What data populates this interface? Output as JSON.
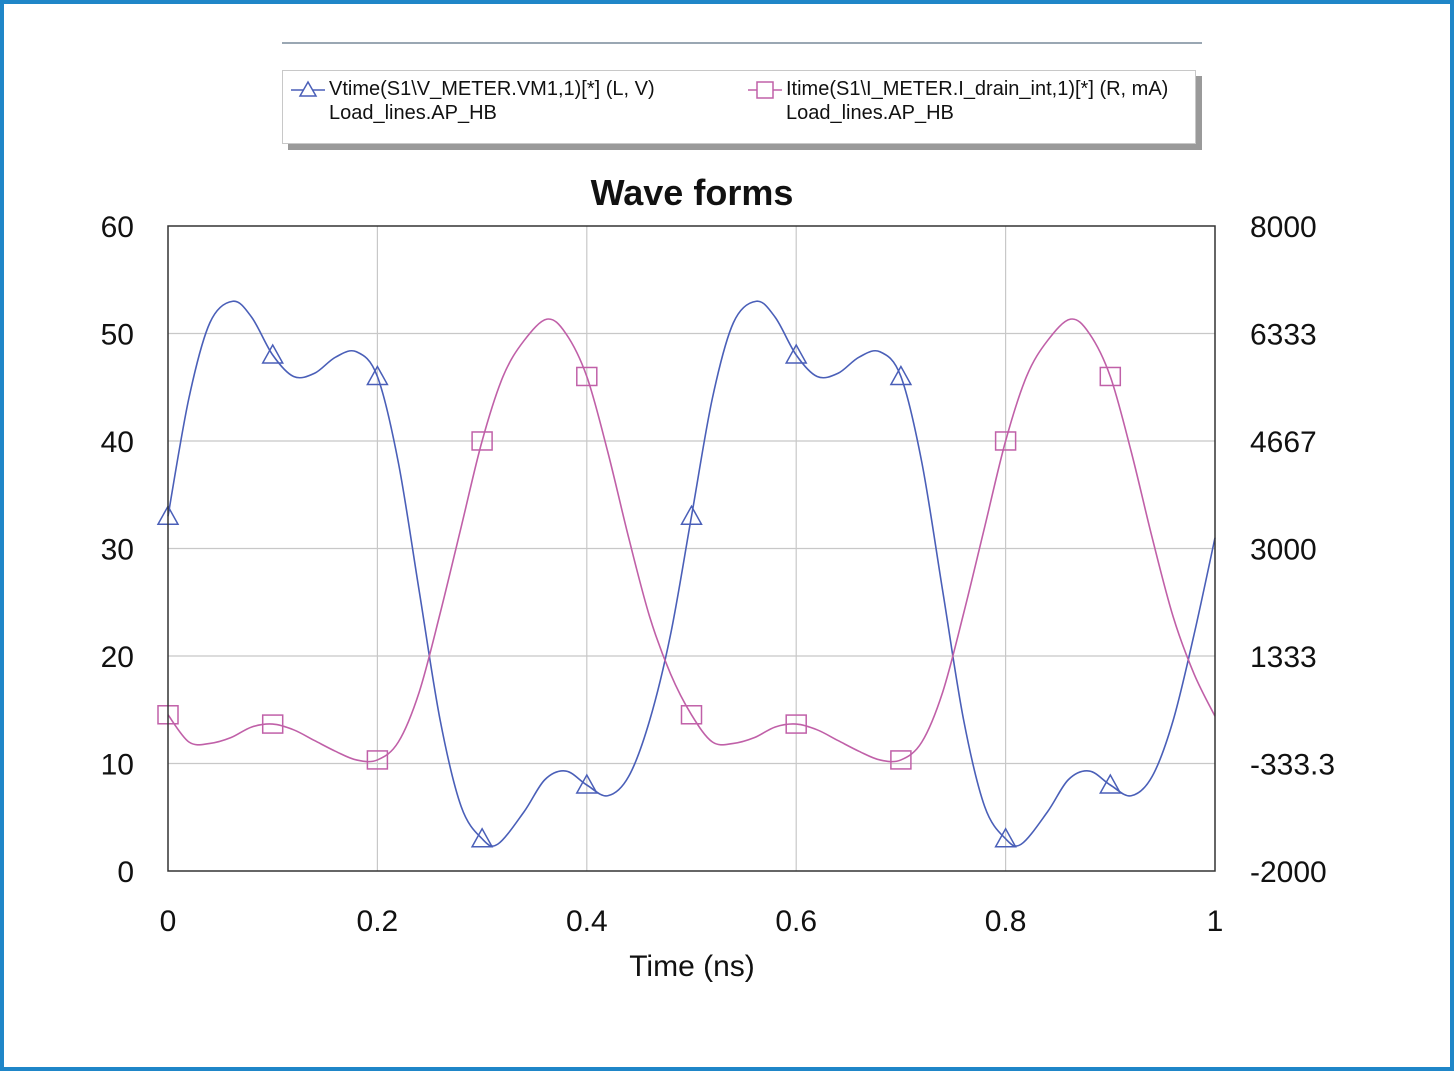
{
  "legend": {
    "entries": [
      {
        "line1": "Vtime(S1\\V_METER.VM1,1)[*] (L, V)",
        "line2": "Load_lines.AP_HB",
        "marker": "triangle",
        "color": "#4a5fb8"
      },
      {
        "line1": "Itime(S1\\I_METER.I_drain_int,1)[*] (R, mA)",
        "line2": "Load_lines.AP_HB",
        "marker": "square",
        "color": "#c060a8"
      }
    ]
  },
  "chart_data": {
    "type": "line",
    "title": "Wave forms",
    "xlabel": "Time (ns)",
    "ylabel": "",
    "y2label": "",
    "xlim": [
      0,
      1
    ],
    "ylim": [
      0,
      60
    ],
    "y2lim": [
      -2000,
      8000
    ],
    "grid": true,
    "x_ticks": [
      "0",
      "0.2",
      "0.4",
      "0.6",
      "0.8",
      "1"
    ],
    "y_ticks": [
      "0",
      "10",
      "20",
      "30",
      "40",
      "50",
      "60"
    ],
    "y2_ticks": [
      "-2000",
      "-333.3",
      "1333",
      "3000",
      "4667",
      "6333",
      "8000"
    ],
    "series": [
      {
        "name": "Vtime(S1\\V_METER.VM1,1)[*] (L, V)",
        "axis": "left",
        "unit": "V",
        "color": "#4a5fb8",
        "marker": "triangle",
        "x": [
          0,
          0.02,
          0.04,
          0.062,
          0.08,
          0.1,
          0.12,
          0.14,
          0.16,
          0.18,
          0.2,
          0.22,
          0.24,
          0.26,
          0.28,
          0.3,
          0.315,
          0.34,
          0.36,
          0.38,
          0.4,
          0.42,
          0.44,
          0.46,
          0.48,
          0.5,
          0.52,
          0.54,
          0.562,
          0.58,
          0.6,
          0.62,
          0.64,
          0.66,
          0.68,
          0.7,
          0.72,
          0.74,
          0.76,
          0.78,
          0.8,
          0.815,
          0.84,
          0.86,
          0.88,
          0.9,
          0.92,
          0.94,
          0.96,
          0.98,
          1.0
        ],
        "y": [
          33,
          44,
          51,
          53,
          51.5,
          48,
          46,
          46.3,
          47.8,
          48.3,
          46,
          38,
          26,
          14,
          6,
          3,
          2.5,
          5.5,
          8.5,
          9.3,
          8,
          7,
          8.8,
          14,
          22,
          33,
          44,
          51,
          53,
          51.5,
          48,
          46,
          46.3,
          47.8,
          48.3,
          46,
          38,
          26,
          14,
          6,
          3,
          2.5,
          5.5,
          8.5,
          9.3,
          8,
          7,
          8.8,
          14,
          22,
          31
        ],
        "marker_x": [
          0,
          0.1,
          0.2,
          0.3,
          0.4,
          0.5,
          0.6,
          0.7,
          0.8,
          0.9
        ]
      },
      {
        "name": "Itime(S1\\I_METER.I_drain_int,1)[*] (R, mA)",
        "axis": "right",
        "unit": "mA",
        "color": "#c060a8",
        "marker": "square",
        "x": [
          0,
          0.02,
          0.04,
          0.06,
          0.08,
          0.1,
          0.12,
          0.14,
          0.16,
          0.18,
          0.2,
          0.22,
          0.24,
          0.26,
          0.28,
          0.3,
          0.32,
          0.34,
          0.362,
          0.38,
          0.4,
          0.42,
          0.44,
          0.46,
          0.48,
          0.5,
          0.52,
          0.54,
          0.56,
          0.58,
          0.6,
          0.62,
          0.64,
          0.66,
          0.68,
          0.7,
          0.72,
          0.74,
          0.76,
          0.78,
          0.8,
          0.82,
          0.84,
          0.862,
          0.88,
          0.9,
          0.92,
          0.94,
          0.96,
          0.98,
          1.0
        ],
        "y": [
          422,
          0,
          -22,
          67,
          233,
          278,
          189,
          22,
          -144,
          -278,
          -278,
          0,
          778,
          2000,
          3333,
          4667,
          5667,
          6222,
          6556,
          6333,
          5667,
          4500,
          3167,
          1944,
          1056,
          422,
          0,
          -22,
          67,
          233,
          278,
          189,
          22,
          -144,
          -278,
          -278,
          0,
          778,
          2000,
          3333,
          4667,
          5667,
          6222,
          6556,
          6333,
          5667,
          4500,
          3167,
          1944,
          1056,
          400
        ],
        "marker_x": [
          0,
          0.1,
          0.2,
          0.3,
          0.4,
          0.5,
          0.6,
          0.7,
          0.8,
          0.9
        ]
      }
    ]
  }
}
